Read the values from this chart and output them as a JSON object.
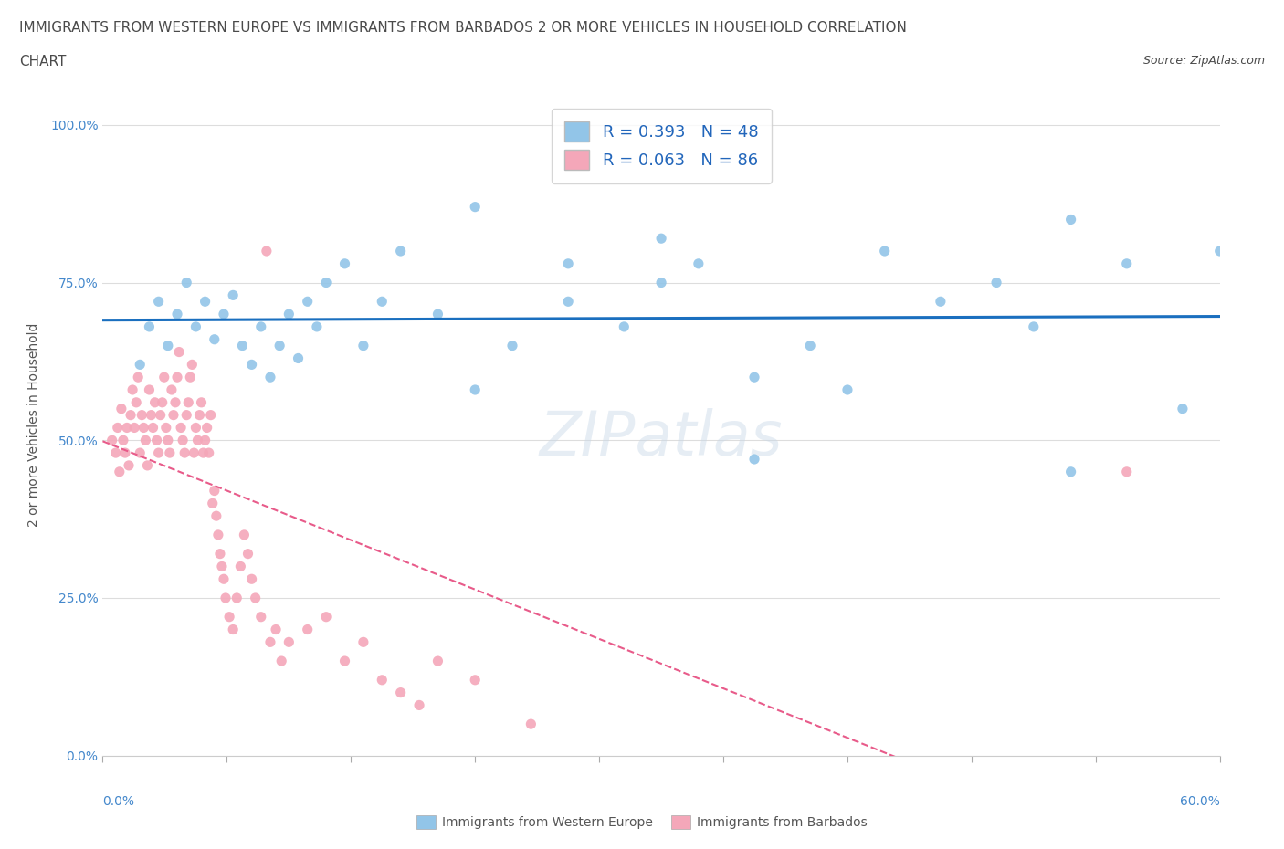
{
  "title_line1": "IMMIGRANTS FROM WESTERN EUROPE VS IMMIGRANTS FROM BARBADOS 2 OR MORE VEHICLES IN HOUSEHOLD CORRELATION",
  "title_line2": "CHART",
  "source_text": "Source: ZipAtlas.com",
  "ylabel": "2 or more Vehicles in Household",
  "ytick_labels": [
    "0.0%",
    "25.0%",
    "50.0%",
    "75.0%",
    "100.0%"
  ],
  "ytick_values": [
    0.0,
    0.25,
    0.5,
    0.75,
    1.0
  ],
  "xlim": [
    0.0,
    0.6
  ],
  "ylim": [
    0.0,
    1.05
  ],
  "blue_color": "#92C5E8",
  "pink_color": "#F4A7B9",
  "blue_line_color": "#1A6FBF",
  "pink_line_color": "#E85B8A",
  "blue_label1": "R = 0.393",
  "blue_label2": "N = 48",
  "pink_label1": "R = 0.063",
  "pink_label2": "N = 86",
  "legend_bottom_blue": "Immigrants from Western Europe",
  "legend_bottom_pink": "Immigrants from Barbados",
  "blue_scatter_x": [
    0.02,
    0.025,
    0.03,
    0.035,
    0.04,
    0.045,
    0.05,
    0.055,
    0.06,
    0.065,
    0.07,
    0.075,
    0.08,
    0.085,
    0.09,
    0.095,
    0.1,
    0.105,
    0.11,
    0.115,
    0.12,
    0.13,
    0.14,
    0.15,
    0.16,
    0.18,
    0.2,
    0.22,
    0.25,
    0.28,
    0.3,
    0.32,
    0.35,
    0.38,
    0.4,
    0.42,
    0.45,
    0.48,
    0.5,
    0.52,
    0.55,
    0.58,
    0.6,
    0.52,
    0.3,
    0.35,
    0.2,
    0.25
  ],
  "blue_scatter_y": [
    0.62,
    0.68,
    0.72,
    0.65,
    0.7,
    0.75,
    0.68,
    0.72,
    0.66,
    0.7,
    0.73,
    0.65,
    0.62,
    0.68,
    0.6,
    0.65,
    0.7,
    0.63,
    0.72,
    0.68,
    0.75,
    0.78,
    0.65,
    0.72,
    0.8,
    0.7,
    0.58,
    0.65,
    0.72,
    0.68,
    0.75,
    0.78,
    0.6,
    0.65,
    0.58,
    0.8,
    0.72,
    0.75,
    0.68,
    0.85,
    0.78,
    0.55,
    0.8,
    0.45,
    0.82,
    0.47,
    0.87,
    0.78
  ],
  "pink_scatter_x": [
    0.005,
    0.007,
    0.008,
    0.009,
    0.01,
    0.011,
    0.012,
    0.013,
    0.014,
    0.015,
    0.016,
    0.017,
    0.018,
    0.019,
    0.02,
    0.021,
    0.022,
    0.023,
    0.024,
    0.025,
    0.026,
    0.027,
    0.028,
    0.029,
    0.03,
    0.031,
    0.032,
    0.033,
    0.034,
    0.035,
    0.036,
    0.037,
    0.038,
    0.039,
    0.04,
    0.041,
    0.042,
    0.043,
    0.044,
    0.045,
    0.046,
    0.047,
    0.048,
    0.049,
    0.05,
    0.051,
    0.052,
    0.053,
    0.054,
    0.055,
    0.056,
    0.057,
    0.058,
    0.059,
    0.06,
    0.061,
    0.062,
    0.063,
    0.064,
    0.065,
    0.066,
    0.068,
    0.07,
    0.072,
    0.074,
    0.076,
    0.078,
    0.08,
    0.082,
    0.085,
    0.088,
    0.09,
    0.093,
    0.096,
    0.1,
    0.11,
    0.12,
    0.13,
    0.14,
    0.15,
    0.16,
    0.17,
    0.18,
    0.2,
    0.23,
    0.55
  ],
  "pink_scatter_y": [
    0.5,
    0.48,
    0.52,
    0.45,
    0.55,
    0.5,
    0.48,
    0.52,
    0.46,
    0.54,
    0.58,
    0.52,
    0.56,
    0.6,
    0.48,
    0.54,
    0.52,
    0.5,
    0.46,
    0.58,
    0.54,
    0.52,
    0.56,
    0.5,
    0.48,
    0.54,
    0.56,
    0.6,
    0.52,
    0.5,
    0.48,
    0.58,
    0.54,
    0.56,
    0.6,
    0.64,
    0.52,
    0.5,
    0.48,
    0.54,
    0.56,
    0.6,
    0.62,
    0.48,
    0.52,
    0.5,
    0.54,
    0.56,
    0.48,
    0.5,
    0.52,
    0.48,
    0.54,
    0.4,
    0.42,
    0.38,
    0.35,
    0.32,
    0.3,
    0.28,
    0.25,
    0.22,
    0.2,
    0.25,
    0.3,
    0.35,
    0.32,
    0.28,
    0.25,
    0.22,
    0.8,
    0.18,
    0.2,
    0.15,
    0.18,
    0.2,
    0.22,
    0.15,
    0.18,
    0.12,
    0.1,
    0.08,
    0.15,
    0.12,
    0.05,
    0.45
  ]
}
